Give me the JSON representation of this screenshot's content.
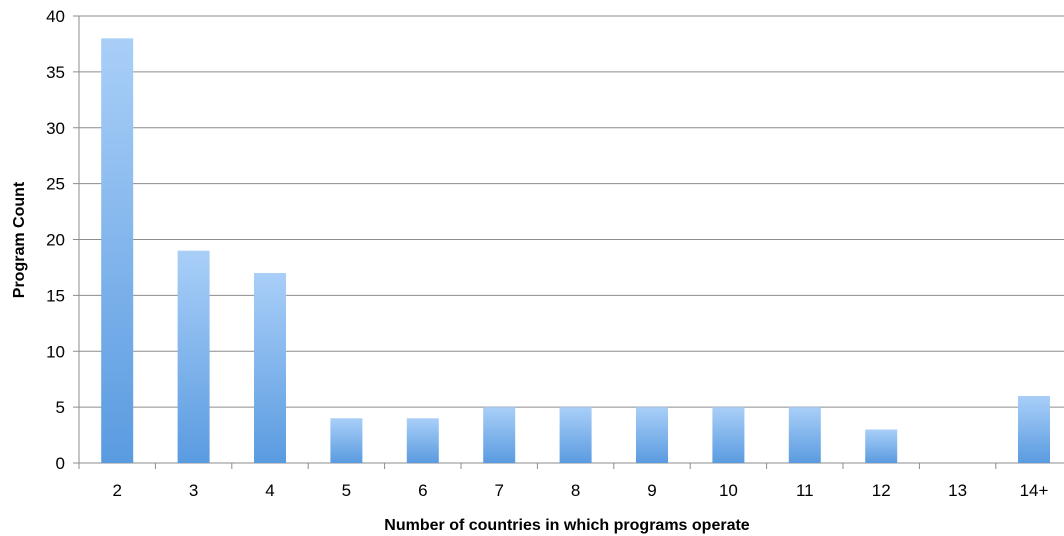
{
  "chart_data": {
    "type": "bar",
    "title": "",
    "xlabel": "Number of countries in which programs operate",
    "ylabel": "Program Count",
    "categories": [
      "2",
      "3",
      "4",
      "5",
      "6",
      "7",
      "8",
      "9",
      "10",
      "11",
      "12",
      "13",
      "14+"
    ],
    "values": [
      38,
      19,
      17,
      4,
      4,
      5,
      5,
      5,
      5,
      5,
      3,
      0,
      6
    ],
    "ylim": [
      0,
      40
    ],
    "yticks": [
      0,
      5,
      10,
      15,
      20,
      25,
      30,
      35,
      40
    ],
    "grid": true,
    "legend": "none",
    "colors": {
      "bar_top": "#a9cff8",
      "bar_bottom": "#5a9be0",
      "gridline": "#8c8c8c",
      "axis": "#8c8c8c"
    }
  }
}
